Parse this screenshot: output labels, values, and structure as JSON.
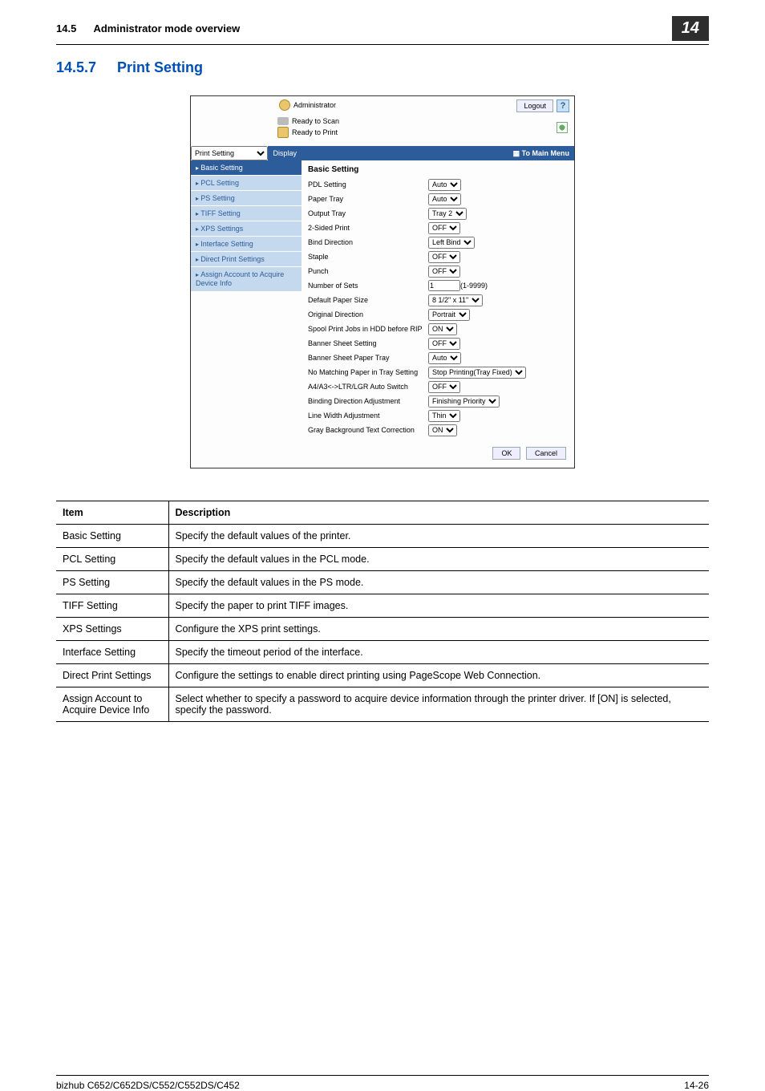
{
  "header": {
    "section_number": "14.5",
    "section_title": "Administrator mode overview",
    "chapter": "14"
  },
  "heading": {
    "number": "14.5.7",
    "title": "Print Setting"
  },
  "screenshot": {
    "user": "Administrator",
    "logout": "Logout",
    "help": "?",
    "ready_scan": "Ready to Scan",
    "ready_print": "Ready to Print",
    "select_value": "Print Setting",
    "display_btn": "Display",
    "to_main_menu": "To Main Menu",
    "nav": [
      "Basic Setting",
      "PCL Setting",
      "PS Setting",
      "TIFF Setting",
      "XPS Settings",
      "Interface Setting",
      "Direct Print Settings",
      "Assign Account to Acquire Device Info"
    ],
    "panel_title": "Basic Setting",
    "rows": [
      {
        "label": "PDL Setting",
        "value": "Auto"
      },
      {
        "label": "Paper Tray",
        "value": "Auto"
      },
      {
        "label": "Output Tray",
        "value": "Tray 2"
      },
      {
        "label": "2-Sided Print",
        "value": "OFF"
      },
      {
        "label": "Bind Direction",
        "value": "Left Bind"
      },
      {
        "label": "Staple",
        "value": "OFF"
      },
      {
        "label": "Punch",
        "value": "OFF"
      },
      {
        "label": "Number of Sets",
        "value": "1",
        "suffix": "(1-9999)",
        "input": true
      },
      {
        "label": "Default Paper Size",
        "value": "8 1/2\" x 11\""
      },
      {
        "label": "Original Direction",
        "value": "Portrait"
      },
      {
        "label": "Spool Print Jobs in HDD before RIP",
        "value": "ON"
      },
      {
        "label": "Banner Sheet Setting",
        "value": "OFF"
      },
      {
        "label": "Banner Sheet Paper Tray",
        "value": "Auto"
      },
      {
        "label": "No Matching Paper in Tray Setting",
        "value": "Stop Printing(Tray Fixed)"
      },
      {
        "label": "A4/A3<->LTR/LGR Auto Switch",
        "value": "OFF"
      },
      {
        "label": "Binding Direction Adjustment",
        "value": "Finishing Priority"
      },
      {
        "label": "Line Width Adjustment",
        "value": "Thin"
      },
      {
        "label": "Gray Background Text Correction",
        "value": "ON"
      }
    ],
    "ok": "OK",
    "cancel": "Cancel"
  },
  "table": {
    "head_item": "Item",
    "head_desc": "Description",
    "rows": [
      {
        "item": "Basic Setting",
        "desc": "Specify the default values of the printer."
      },
      {
        "item": "PCL Setting",
        "desc": "Specify the default values in the PCL mode."
      },
      {
        "item": "PS Setting",
        "desc": "Specify the default values in the PS mode."
      },
      {
        "item": "TIFF Setting",
        "desc": "Specify the paper to print TIFF images."
      },
      {
        "item": "XPS Settings",
        "desc": "Configure the XPS print settings."
      },
      {
        "item": "Interface Setting",
        "desc": "Specify the timeout period of the interface."
      },
      {
        "item": "Direct Print Settings",
        "desc": "Configure the settings to enable direct printing using PageScope Web Connection."
      },
      {
        "item": "Assign Account to Acquire Device Info",
        "desc": "Select whether to specify a password to acquire device information through the printer driver. If [ON] is selected, specify the password."
      }
    ]
  },
  "footer": {
    "model": "bizhub C652/C652DS/C552/C552DS/C452",
    "page": "14-26"
  }
}
